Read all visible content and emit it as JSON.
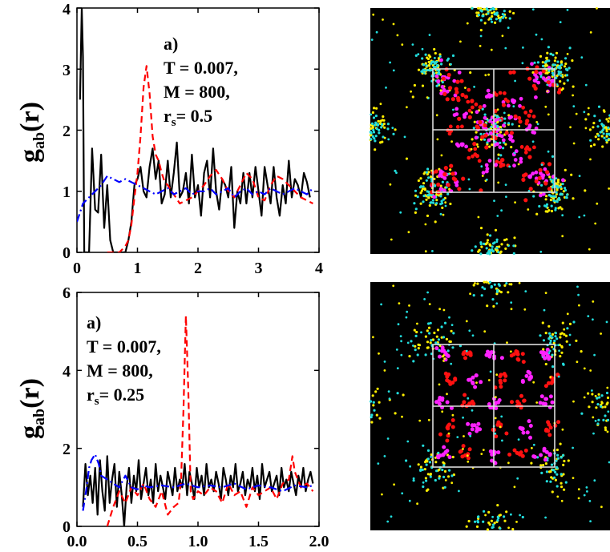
{
  "charts": [
    {
      "ylabel": "g",
      "ylabel_sub": "ab",
      "ylabel_tail": "(r)",
      "annotation": {
        "label": "a)",
        "line1": "T = 0.007,",
        "line2": "M = 800,",
        "line3_main": "r",
        "line3_sub": "s",
        "line3_tail": "= 0.5"
      },
      "xticks": [
        "0",
        "1",
        "2",
        "3",
        "4"
      ],
      "yticks": [
        "0",
        "1",
        "2",
        "3",
        "4"
      ]
    },
    {
      "ylabel": "g",
      "ylabel_sub": "ab",
      "ylabel_tail": "(r)",
      "annotation": {
        "label": "a)",
        "line1": "T = 0.007,",
        "line2": "M = 800,",
        "line3_main": "r",
        "line3_sub": "s",
        "line3_tail": "= 0.25"
      },
      "xticks": [
        "0.0",
        "0.5",
        "1.0",
        "1.5",
        "2.0"
      ],
      "yticks": [
        "0",
        "2",
        "4",
        "6"
      ]
    }
  ],
  "chart_data": [
    {
      "type": "line",
      "xlim": [
        0,
        4
      ],
      "ylim": [
        0,
        4
      ],
      "grid": false,
      "series": [
        {
          "color": "#000000",
          "style": "solid",
          "x": [
            0.05,
            0.08,
            0.1,
            0.12,
            0.15,
            0.2,
            0.25,
            0.3,
            0.35,
            0.4,
            0.45,
            0.5,
            0.55,
            0.6,
            0.65,
            0.7,
            0.75,
            0.8,
            0.85,
            0.9,
            0.95,
            1.0,
            1.05,
            1.1,
            1.15,
            1.2,
            1.25,
            1.3,
            1.35,
            1.4,
            1.45,
            1.5,
            1.55,
            1.6,
            1.65,
            1.7,
            1.75,
            1.8,
            1.85,
            1.9,
            1.95,
            2.0,
            2.05,
            2.1,
            2.15,
            2.2,
            2.25,
            2.3,
            2.35,
            2.4,
            2.45,
            2.5,
            2.55,
            2.6,
            2.65,
            2.7,
            2.75,
            2.8,
            2.85,
            2.9,
            2.95,
            3.0,
            3.05,
            3.1,
            3.15,
            3.2,
            3.25,
            3.3,
            3.35,
            3.4,
            3.45,
            3.5,
            3.55,
            3.6,
            3.65,
            3.7,
            3.75,
            3.8,
            3.85
          ],
          "y": [
            2.5,
            4.0,
            3.2,
            0.0,
            0.0,
            0.0,
            1.7,
            0.7,
            0.65,
            1.6,
            0.4,
            1.1,
            0.2,
            0.0,
            0.0,
            0.0,
            0.0,
            0.0,
            0.2,
            0.5,
            1.1,
            1.2,
            1.4,
            1.0,
            0.9,
            1.4,
            1.7,
            1.2,
            1.5,
            0.8,
            0.95,
            1.5,
            0.9,
            1.3,
            1.8,
            0.9,
            1.0,
            1.3,
            0.8,
            1.6,
            0.9,
            1.1,
            0.6,
            1.3,
            1.5,
            0.9,
            1.7,
            1.0,
            0.7,
            1.2,
            1.1,
            0.9,
            1.4,
            0.4,
            1.0,
            0.8,
            1.3,
            0.8,
            1.3,
            0.9,
            1.4,
            1.0,
            0.6,
            1.4,
            1.1,
            0.8,
            1.4,
            0.9,
            0.6,
            1.1,
            0.8,
            1.5,
            0.9,
            1.2,
            1.1,
            0.9,
            1.3,
            1.15,
            0.9
          ]
        },
        {
          "color": "#ff0000",
          "style": "dashed",
          "x": [
            0.5,
            0.6,
            0.7,
            0.8,
            0.85,
            0.9,
            0.95,
            1.0,
            1.05,
            1.1,
            1.15,
            1.2,
            1.25,
            1.3,
            1.35,
            1.4,
            1.45,
            1.5,
            1.6,
            1.7,
            1.8,
            1.9,
            2.0,
            2.1,
            2.2,
            2.3,
            2.4,
            2.5,
            2.6,
            2.7,
            2.8,
            2.9,
            3.0,
            3.1,
            3.2,
            3.3,
            3.4,
            3.5,
            3.6,
            3.7,
            3.8,
            3.9
          ],
          "y": [
            0.0,
            0.0,
            0.0,
            0.1,
            0.2,
            0.45,
            0.9,
            1.3,
            1.9,
            2.7,
            3.05,
            2.6,
            1.9,
            1.6,
            1.5,
            1.3,
            1.15,
            1.1,
            0.95,
            0.8,
            0.85,
            0.9,
            1.0,
            1.1,
            1.25,
            1.35,
            1.2,
            1.0,
            0.9,
            1.1,
            1.3,
            1.2,
            0.9,
            0.85,
            1.1,
            1.25,
            1.2,
            1.1,
            1.0,
            0.9,
            0.85,
            0.8
          ]
        },
        {
          "color": "#0000ff",
          "style": "dashdot",
          "x": [
            0.0,
            0.1,
            0.2,
            0.3,
            0.4,
            0.5,
            0.6,
            0.7,
            0.8,
            0.9,
            1.0,
            1.1,
            1.2,
            1.3,
            1.4,
            1.5,
            1.6,
            1.7,
            1.8,
            1.9,
            2.0,
            2.1,
            2.2,
            2.3,
            2.4,
            2.5,
            2.6,
            2.7,
            2.8,
            2.9,
            3.0,
            3.1,
            3.2,
            3.3,
            3.4,
            3.5,
            3.6,
            3.7,
            3.8,
            3.9
          ],
          "y": [
            0.5,
            0.8,
            0.9,
            1.0,
            1.1,
            1.25,
            1.2,
            1.15,
            1.2,
            1.15,
            1.1,
            1.05,
            1.0,
            0.95,
            1.0,
            1.05,
            0.95,
            1.0,
            1.05,
            0.95,
            1.0,
            1.0,
            1.05,
            0.95,
            1.0,
            1.05,
            0.9,
            1.0,
            1.05,
            0.95,
            1.0,
            0.95,
            1.05,
            1.0,
            0.95,
            1.0,
            1.05,
            1.0,
            0.95,
            1.05
          ]
        }
      ]
    },
    {
      "type": "line",
      "xlim": [
        0,
        2
      ],
      "ylim": [
        0,
        6
      ],
      "grid": false,
      "series": [
        {
          "color": "#000000",
          "style": "solid",
          "x": [
            0.05,
            0.07,
            0.09,
            0.11,
            0.13,
            0.15,
            0.17,
            0.19,
            0.21,
            0.23,
            0.25,
            0.27,
            0.29,
            0.31,
            0.33,
            0.35,
            0.37,
            0.39,
            0.41,
            0.43,
            0.45,
            0.47,
            0.49,
            0.51,
            0.53,
            0.55,
            0.57,
            0.59,
            0.61,
            0.63,
            0.65,
            0.67,
            0.69,
            0.71,
            0.73,
            0.75,
            0.77,
            0.79,
            0.81,
            0.83,
            0.85,
            0.87,
            0.89,
            0.91,
            0.93,
            0.95,
            0.97,
            0.99,
            1.01,
            1.03,
            1.05,
            1.07,
            1.09,
            1.11,
            1.13,
            1.15,
            1.17,
            1.19,
            1.21,
            1.23,
            1.25,
            1.27,
            1.29,
            1.31,
            1.33,
            1.35,
            1.37,
            1.39,
            1.41,
            1.43,
            1.45,
            1.47,
            1.49,
            1.51,
            1.53,
            1.55,
            1.57,
            1.59,
            1.61,
            1.63,
            1.65,
            1.67,
            1.69,
            1.71,
            1.73,
            1.75,
            1.77,
            1.79,
            1.81,
            1.83,
            1.85,
            1.87,
            1.89,
            1.91,
            1.93,
            1.95
          ],
          "y": [
            0.5,
            1.6,
            0.8,
            1.3,
            0.6,
            1.5,
            0.3,
            1.7,
            0.9,
            0.4,
            1.8,
            0.6,
            1.2,
            1.6,
            0.5,
            1.4,
            0.8,
            0.0,
            1.0,
            1.5,
            0.6,
            1.3,
            0.9,
            1.7,
            0.7,
            1.1,
            1.5,
            0.8,
            1.2,
            0.6,
            1.6,
            0.9,
            1.3,
            1.0,
            0.7,
            1.4,
            1.1,
            0.8,
            1.5,
            0.9,
            1.2,
            1.0,
            1.6,
            0.8,
            1.4,
            1.1,
            0.7,
            1.5,
            1.0,
            1.3,
            0.8,
            1.6,
            1.0,
            1.2,
            0.9,
            1.4,
            1.1,
            0.7,
            1.5,
            1.2,
            0.8,
            1.3,
            1.0,
            1.6,
            0.9,
            1.1,
            1.4,
            0.8,
            1.2,
            1.0,
            1.5,
            0.9,
            1.3,
            0.7,
            1.6,
            1.0,
            1.2,
            1.4,
            0.9,
            1.1,
            1.3,
            0.8,
            1.5,
            1.0,
            1.2,
            0.9,
            1.4,
            1.1,
            0.8,
            1.3,
            1.0,
            1.5,
            0.9,
            1.2,
            1.4,
            1.1
          ]
        },
        {
          "color": "#ff0000",
          "style": "dashed",
          "x": [
            0.25,
            0.3,
            0.35,
            0.4,
            0.45,
            0.5,
            0.55,
            0.6,
            0.65,
            0.7,
            0.75,
            0.8,
            0.84,
            0.86,
            0.88,
            0.9,
            0.92,
            0.94,
            0.96,
            1.0,
            1.05,
            1.1,
            1.15,
            1.2,
            1.25,
            1.3,
            1.35,
            1.4,
            1.45,
            1.5,
            1.55,
            1.6,
            1.65,
            1.7,
            1.75,
            1.78,
            1.8,
            1.85,
            1.9,
            1.95
          ],
          "y": [
            0.0,
            0.5,
            0.9,
            0.6,
            1.0,
            0.8,
            1.1,
            0.7,
            0.5,
            0.9,
            0.3,
            0.5,
            0.6,
            1.2,
            3.0,
            5.4,
            3.5,
            0.9,
            0.7,
            0.9,
            0.8,
            1.0,
            0.9,
            0.6,
            1.1,
            0.8,
            0.9,
            0.5,
            1.0,
            0.8,
            0.9,
            1.0,
            0.7,
            1.1,
            1.2,
            1.8,
            1.4,
            1.0,
            1.1,
            0.9
          ]
        },
        {
          "color": "#0000ff",
          "style": "dashdot",
          "x": [
            0.05,
            0.08,
            0.1,
            0.12,
            0.15,
            0.18,
            0.2,
            0.25,
            0.3,
            0.35,
            0.4,
            0.45,
            0.5,
            0.55,
            0.6,
            0.7,
            0.8,
            0.9,
            1.0,
            1.1,
            1.2,
            1.3,
            1.4,
            1.5,
            1.6,
            1.7,
            1.8,
            1.9,
            1.95
          ],
          "y": [
            0.4,
            1.0,
            1.5,
            1.7,
            1.85,
            1.6,
            1.3,
            1.2,
            1.1,
            1.0,
            1.3,
            1.0,
            0.95,
            1.05,
            1.0,
            1.05,
            1.0,
            1.1,
            1.0,
            1.05,
            1.0,
            1.1,
            0.95,
            1.05,
            1.0,
            0.9,
            1.05,
            1.0,
            1.05
          ]
        }
      ]
    }
  ]
}
